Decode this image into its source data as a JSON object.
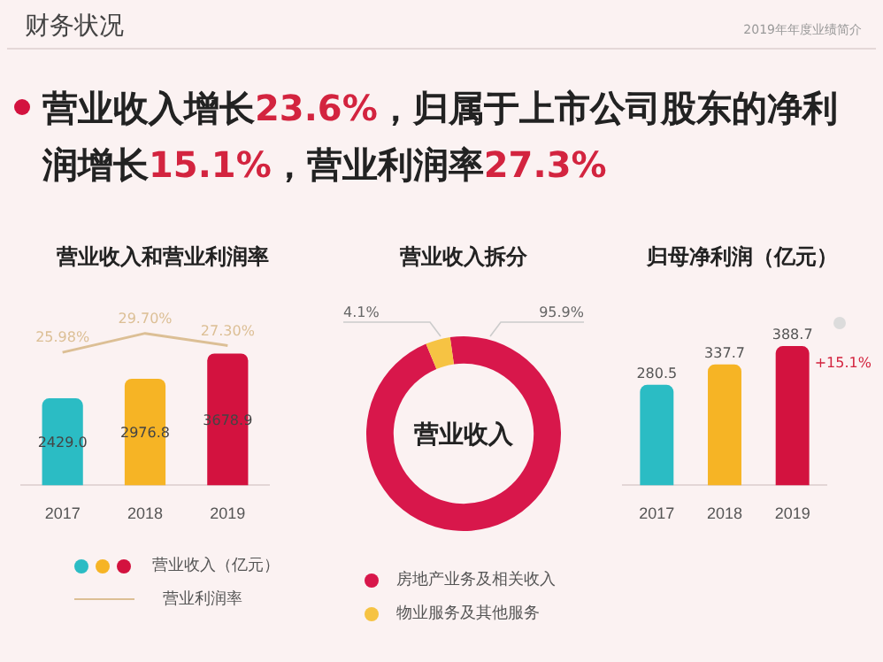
{
  "chart_data": [
    {
      "type": "other",
      "title": "营业收入增长23.6%，归属于上市公司股东的净利润增长15.1%，营业利润率27.3%",
      "annotations": [
        "财务状况",
        "2019年年度业绩简介"
      ]
    },
    {
      "type": "bar",
      "title": "营业收入和营业利润率",
      "categories": [
        "2017",
        "2018",
        "2019"
      ],
      "legend": "bottom",
      "marker": "none",
      "series": [
        {
          "name": "营业收入（亿元）",
          "type": "bar",
          "colors": [
            "#2bbcc4",
            "#f6b425",
            "#d3123f"
          ],
          "values": [
            2429.0,
            2976.8,
            3678.9
          ],
          "value_labels": [
            "2429.0",
            "2976.8",
            "3678.9"
          ]
        },
        {
          "name": "营业利润率",
          "type": "line",
          "axis": "y2",
          "color": "#dcbf95",
          "values": [
            25.98,
            29.7,
            27.3
          ],
          "value_labels": [
            "25.98%",
            "29.70%",
            "27.30%"
          ]
        }
      ]
    },
    {
      "type": "donut",
      "title": "营业收入拆分",
      "categories": [
        "房地产业务及相关收入",
        "物业服务及其他服务"
      ],
      "values": [
        95.9,
        4.1
      ],
      "colors": [
        "#d8174b",
        "#f6c343"
      ],
      "value_labels": [
        "95.9%",
        "4.1%"
      ],
      "legend": "bottom",
      "annotations": [
        "营业收入"
      ]
    },
    {
      "type": "bar",
      "title": "归母净利润（亿元）",
      "categories": [
        "2017",
        "2018",
        "2019"
      ],
      "colors": [
        "#2bbcc4",
        "#f6b425",
        "#d3123f"
      ],
      "values": [
        280.5,
        337.7,
        388.7
      ],
      "data_labels": true,
      "annotations": [
        {
          "text": "+15.1%",
          "x": "2019",
          "y": 388.7
        }
      ]
    }
  ]
}
